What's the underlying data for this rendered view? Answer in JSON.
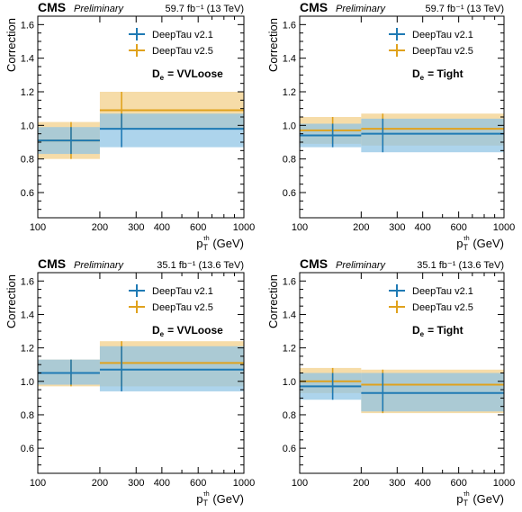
{
  "colors": {
    "v21": "#1f7ab4",
    "v25": "#e0a21d",
    "v21_band": "#8ec4e4",
    "v25_band": "#f3cf86"
  },
  "chart_data": [
    {
      "type": "bar",
      "experiment": "CMS",
      "status": "Preliminary",
      "lumi": "59.7 fb⁻¹ (13 TeV)",
      "ylabel": "Correction",
      "xlabel": "p",
      "xlabel_sub": "T",
      "xlabel_sup": "τh",
      "xlabel_unit": "(GeV)",
      "xscale": "log",
      "xlim": [
        100,
        1000
      ],
      "ylim": [
        0.45,
        1.65
      ],
      "yticks": [
        "0.6",
        "0.8",
        "1.0",
        "1.2",
        "1.4",
        "1.6"
      ],
      "xticks": [
        "100",
        "200",
        "300",
        "400",
        "600",
        "1000"
      ],
      "xtick_values": [
        100,
        200,
        300,
        400,
        600,
        1000
      ],
      "bins": [
        [
          100,
          200
        ],
        [
          200,
          1000
        ]
      ],
      "annotation": "D",
      "annotation_sub": "e",
      "annotation_value": "=  VVLoose",
      "legend": "top-right",
      "series": [
        {
          "name": "DeepTau v2.1",
          "x": [
            145,
            255
          ],
          "values": [
            0.91,
            0.98
          ],
          "up": [
            0.99,
            1.07
          ],
          "down": [
            0.83,
            0.87
          ]
        },
        {
          "name": "DeepTau v2.5",
          "x": [
            145,
            255
          ],
          "values": [
            0.91,
            1.09
          ],
          "up": [
            1.02,
            1.2
          ],
          "down": [
            0.8,
            0.98
          ]
        }
      ]
    },
    {
      "type": "bar",
      "experiment": "CMS",
      "status": "Preliminary",
      "lumi": "59.7 fb⁻¹ (13 TeV)",
      "ylabel": "Correction",
      "xlabel": "p",
      "xlabel_sub": "T",
      "xlabel_sup": "τh",
      "xlabel_unit": "(GeV)",
      "xscale": "log",
      "xlim": [
        100,
        1000
      ],
      "ylim": [
        0.45,
        1.65
      ],
      "yticks": [
        "0.6",
        "0.8",
        "1.0",
        "1.2",
        "1.4",
        "1.6"
      ],
      "xticks": [
        "100",
        "200",
        "300",
        "400",
        "600",
        "1000"
      ],
      "xtick_values": [
        100,
        200,
        300,
        400,
        600,
        1000
      ],
      "bins": [
        [
          100,
          200
        ],
        [
          200,
          1000
        ]
      ],
      "annotation": "D",
      "annotation_sub": "e",
      "annotation_value": "=  Tight",
      "legend": "top-right",
      "series": [
        {
          "name": "DeepTau v2.1",
          "x": [
            145,
            255
          ],
          "values": [
            0.94,
            0.95
          ],
          "up": [
            1.01,
            1.04
          ],
          "down": [
            0.87,
            0.84
          ]
        },
        {
          "name": "DeepTau v2.5",
          "x": [
            145,
            255
          ],
          "values": [
            0.97,
            0.98
          ],
          "up": [
            1.05,
            1.07
          ],
          "down": [
            0.89,
            0.88
          ]
        }
      ]
    },
    {
      "type": "bar",
      "experiment": "CMS",
      "status": "Preliminary",
      "lumi": "35.1 fb⁻¹ (13.6 TeV)",
      "ylabel": "Correction",
      "xlabel": "p",
      "xlabel_sub": "T",
      "xlabel_sup": "τh",
      "xlabel_unit": "(GeV)",
      "xscale": "log",
      "xlim": [
        100,
        1000
      ],
      "ylim": [
        0.45,
        1.65
      ],
      "yticks": [
        "0.6",
        "0.8",
        "1.0",
        "1.2",
        "1.4",
        "1.6"
      ],
      "xticks": [
        "100",
        "200",
        "300",
        "400",
        "600",
        "1000"
      ],
      "xtick_values": [
        100,
        200,
        300,
        400,
        600,
        1000
      ],
      "bins": [
        [
          100,
          200
        ],
        [
          200,
          1000
        ]
      ],
      "annotation": "D",
      "annotation_sub": "e",
      "annotation_value": "=  VVLoose",
      "legend": "top-right",
      "series": [
        {
          "name": "DeepTau v2.1",
          "x": [
            145,
            255
          ],
          "values": [
            1.05,
            1.07
          ],
          "up": [
            1.13,
            1.21
          ],
          "down": [
            0.98,
            0.94
          ]
        },
        {
          "name": "DeepTau v2.5",
          "x": [
            145,
            255
          ],
          "values": [
            1.05,
            1.11
          ],
          "up": [
            1.13,
            1.24
          ],
          "down": [
            0.97,
            0.97
          ]
        }
      ]
    },
    {
      "type": "bar",
      "experiment": "CMS",
      "status": "Preliminary",
      "lumi": "35.1 fb⁻¹ (13.6 TeV)",
      "ylabel": "Correction",
      "xlabel": "p",
      "xlabel_sub": "T",
      "xlabel_sup": "τh",
      "xlabel_unit": "(GeV)",
      "xscale": "log",
      "xlim": [
        100,
        1000
      ],
      "ylim": [
        0.45,
        1.65
      ],
      "yticks": [
        "0.6",
        "0.8",
        "1.0",
        "1.2",
        "1.4",
        "1.6"
      ],
      "xticks": [
        "100",
        "200",
        "300",
        "400",
        "600",
        "1000"
      ],
      "xtick_values": [
        100,
        200,
        300,
        400,
        600,
        1000
      ],
      "bins": [
        [
          100,
          200
        ],
        [
          200,
          1000
        ]
      ],
      "annotation": "D",
      "annotation_sub": "e",
      "annotation_value": "=  Tight",
      "legend": "top-right",
      "series": [
        {
          "name": "DeepTau v2.1",
          "x": [
            145,
            255
          ],
          "values": [
            0.97,
            0.93
          ],
          "up": [
            1.05,
            1.05
          ],
          "down": [
            0.89,
            0.82
          ]
        },
        {
          "name": "DeepTau v2.5",
          "x": [
            145,
            255
          ],
          "values": [
            1.0,
            0.98
          ],
          "up": [
            1.08,
            1.07
          ],
          "down": [
            0.93,
            0.81
          ]
        }
      ]
    }
  ]
}
